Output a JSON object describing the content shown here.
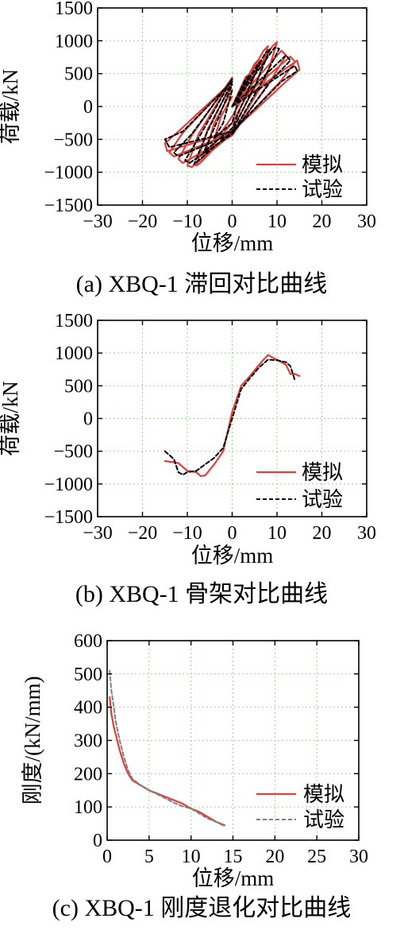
{
  "legend_labels": {
    "sim": "模拟",
    "test": "试验"
  },
  "colors": {
    "sim": "#e0403c",
    "test": "#000000",
    "stiff_test": "#808080",
    "grid": "#9fd29a"
  },
  "chart_data": [
    {
      "id": "a",
      "type": "line",
      "caption": "(a) XBQ-1 滞回对比曲线",
      "xlabel": "位移/mm",
      "ylabel": "荷载/kN",
      "xlim": [
        -30,
        30
      ],
      "ylim": [
        -1500,
        1500
      ],
      "xticks": [
        -30,
        -20,
        -10,
        0,
        10,
        20,
        30
      ],
      "yticks": [
        -1500,
        -1000,
        -500,
        0,
        500,
        1000,
        1500
      ],
      "grid": true,
      "legend_position": "bottom-right",
      "series": [
        {
          "name": "模拟",
          "style": "solid",
          "loops": [
            {
              "x": [
                0,
                3,
                4,
                2.5,
                0,
                -3,
                -4,
                -2.5,
                0
              ],
              "y": [
                0,
                450,
                500,
                150,
                -150,
                -450,
                -500,
                -150,
                150
              ]
            },
            {
              "x": [
                0,
                5,
                6,
                4,
                0,
                -5,
                -6,
                -4,
                0
              ],
              "y": [
                0,
                650,
                720,
                250,
                -250,
                -650,
                -720,
                -250,
                250
              ]
            },
            {
              "x": [
                0,
                7,
                8,
                5.5,
                0,
                -7,
                -8,
                -5.5,
                0
              ],
              "y": [
                0,
                850,
                920,
                350,
                -350,
                -850,
                -900,
                -350,
                350
              ]
            },
            {
              "x": [
                0,
                9,
                10,
                7.5,
                0,
                -9,
                -10,
                -7.5,
                0
              ],
              "y": [
                0,
                920,
                980,
                420,
                -420,
                -920,
                -900,
                -420,
                420
              ]
            },
            {
              "x": [
                0,
                11,
                12,
                9,
                0,
                -11,
                -12,
                -9,
                0
              ],
              "y": [
                0,
                850,
                780,
                440,
                -440,
                -860,
                -800,
                -440,
                440
              ]
            },
            {
              "x": [
                0,
                13,
                14,
                11,
                0,
                -13,
                -14,
                -11,
                0
              ],
              "y": [
                0,
                760,
                680,
                400,
                -400,
                -760,
                -700,
                -400,
                400
              ]
            },
            {
              "x": [
                0,
                14.5,
                15,
                12,
                0,
                -14.5,
                -15,
                -12,
                0
              ],
              "y": [
                0,
                700,
                560,
                380,
                -380,
                -680,
                -560,
                -380,
                380
              ]
            }
          ]
        },
        {
          "name": "试验",
          "style": "dashed",
          "loops": [
            {
              "x": [
                0,
                3,
                4,
                2,
                0,
                -3,
                -4,
                -2,
                0
              ],
              "y": [
                0,
                420,
                480,
                250,
                -250,
                -420,
                -480,
                -250,
                250
              ]
            },
            {
              "x": [
                0,
                5.5,
                6.5,
                4,
                0,
                -5.5,
                -6.5,
                -4,
                0
              ],
              "y": [
                0,
                620,
                700,
                330,
                -330,
                -640,
                -720,
                -330,
                330
              ]
            },
            {
              "x": [
                0,
                7.5,
                8.5,
                5.5,
                0,
                -7.5,
                -8.5,
                -5.5,
                0
              ],
              "y": [
                0,
                820,
                880,
                380,
                -380,
                -820,
                -880,
                -380,
                380
              ]
            },
            {
              "x": [
                0,
                9.5,
                10.5,
                7,
                0,
                -9.5,
                -10.5,
                -7,
                0
              ],
              "y": [
                0,
                900,
                880,
                420,
                -420,
                -860,
                -820,
                -420,
                420
              ]
            },
            {
              "x": [
                0,
                12,
                13,
                9,
                0,
                -12,
                -13,
                -9,
                0
              ],
              "y": [
                0,
                780,
                700,
                420,
                -420,
                -760,
                -700,
                -420,
                420
              ]
            },
            {
              "x": [
                0,
                14,
                14.5,
                11,
                0,
                -14,
                -15,
                -11,
                0
              ],
              "y": [
                0,
                620,
                540,
                380,
                -380,
                -620,
                -500,
                -380,
                380
              ]
            }
          ]
        }
      ]
    },
    {
      "id": "b",
      "type": "line",
      "caption": "(b) XBQ-1 骨架对比曲线",
      "xlabel": "位移/mm",
      "ylabel": "荷载/kN",
      "xlim": [
        -30,
        30
      ],
      "ylim": [
        -1500,
        1500
      ],
      "xticks": [
        -30,
        -20,
        -10,
        0,
        10,
        20,
        30
      ],
      "yticks": [
        -1500,
        -1000,
        -500,
        0,
        500,
        1000,
        1500
      ],
      "grid": true,
      "legend_position": "bottom-right",
      "series": [
        {
          "name": "模拟",
          "style": "solid",
          "x": [
            -15,
            -12,
            -10,
            -8,
            -7,
            -6,
            -4,
            -2,
            0,
            2,
            4,
            6,
            7,
            8,
            9,
            10,
            11,
            12,
            13,
            14,
            15
          ],
          "y": [
            -650,
            -680,
            -800,
            -820,
            -880,
            -870,
            -700,
            -500,
            100,
            500,
            650,
            820,
            900,
            970,
            930,
            900,
            860,
            820,
            680,
            680,
            650
          ]
        },
        {
          "name": "试验",
          "style": "dashed",
          "x": [
            -15,
            -13,
            -12,
            -11,
            -10,
            -8,
            -6,
            -4,
            -2,
            0,
            2,
            4,
            6,
            8,
            10,
            12,
            13,
            14
          ],
          "y": [
            -500,
            -620,
            -820,
            -860,
            -820,
            -800,
            -700,
            -600,
            -450,
            0,
            450,
            620,
            780,
            900,
            890,
            860,
            800,
            580
          ]
        }
      ]
    },
    {
      "id": "c",
      "type": "line",
      "caption": "(c) XBQ-1 刚度退化对比曲线",
      "xlabel": "位移/mm",
      "ylabel": "刚度/(kN/mm)",
      "xlim": [
        0,
        30
      ],
      "ylim": [
        0,
        600
      ],
      "xticks": [
        0,
        5,
        10,
        15,
        20,
        25,
        30
      ],
      "yticks": [
        0,
        100,
        200,
        300,
        400,
        500,
        600
      ],
      "grid": true,
      "legend_position": "bottom-right",
      "series": [
        {
          "name": "模拟",
          "style": "solid",
          "x": [
            0.3,
            0.5,
            0.8,
            1,
            1.5,
            2,
            2.5,
            3,
            4,
            5,
            6,
            7,
            8,
            9,
            10,
            11,
            12,
            13,
            14
          ],
          "y": [
            430,
            380,
            340,
            320,
            270,
            230,
            200,
            180,
            165,
            150,
            140,
            130,
            120,
            110,
            95,
            85,
            70,
            55,
            45
          ]
        },
        {
          "name": "试验",
          "style": "dashed",
          "x": [
            0.3,
            0.5,
            0.8,
            1,
            1.5,
            2,
            2.5,
            3,
            4,
            5,
            6,
            7,
            8,
            9,
            10,
            11,
            12,
            13,
            14
          ],
          "y": [
            510,
            450,
            400,
            360,
            300,
            250,
            210,
            185,
            165,
            150,
            138,
            125,
            112,
            102,
            95,
            80,
            65,
            55,
            42
          ]
        }
      ]
    }
  ]
}
